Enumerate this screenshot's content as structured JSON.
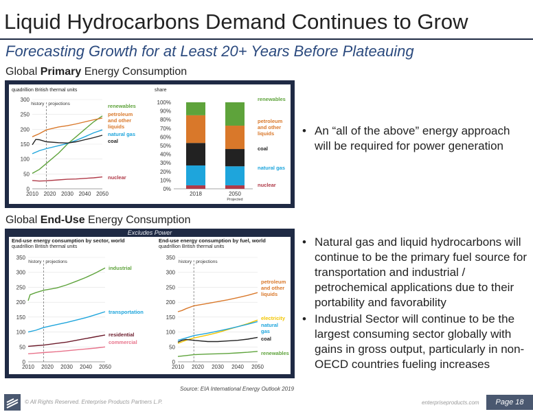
{
  "title": "Liquid Hydrocarbons Demand Continues to Grow",
  "subtitle": "Forecasting Growth for at Least 20+ Years Before Plateauing",
  "section1": {
    "pre": "Global ",
    "bold": "Primary",
    "post": " Energy Consumption"
  },
  "section2": {
    "pre": "Global ",
    "bold": "End-Use",
    "post": " Energy Consumption"
  },
  "excludes_power": "Excludes Power",
  "bullets1": [
    "An “all of the above” energy approach will be required for power generation"
  ],
  "bullets2": [
    "Natural gas and liquid hydrocarbons will continue to be the primary fuel source for transportation and industrial / petrochemical applications due to their portability and favorability",
    "Industrial Sector will continue to be the largest consuming sector globally with gains in gross output, particularly in non-OECD countries fueling increases"
  ],
  "source": "Source:  EIA International Energy Outlook 2019",
  "footer": {
    "copyright": "© All Rights Reserved. Enterprise Products Partners L.P.",
    "site": "enterpriseproducts.com",
    "page": "Page 18"
  },
  "colors": {
    "navy": "#1f2a44",
    "renewables": "#5ea33b",
    "petroleum": "#d9782a",
    "natural_gas": "#1ea5dc",
    "coal": "#222222",
    "nuclear": "#b03a48",
    "residential": "#6b1a2a",
    "commercial": "#e8728a",
    "electricity": "#f2c500"
  },
  "chart_data": [
    {
      "type": "line",
      "title": "",
      "ylabel": "quadrillion British thermal units",
      "x_ticks": [
        2010,
        2020,
        2030,
        2040,
        2050
      ],
      "y_ticks": [
        0,
        50,
        100,
        150,
        200,
        250,
        300
      ],
      "xlim": [
        2010,
        2050
      ],
      "ylim": [
        0,
        300
      ],
      "annotations": [
        "history",
        "projections"
      ],
      "divider_x": 2018,
      "series": [
        {
          "name": "renewables",
          "color": "#5ea33b",
          "x": [
            2010,
            2014,
            2018,
            2025,
            2030,
            2035,
            2040,
            2045,
            2050
          ],
          "values": [
            52,
            65,
            85,
            120,
            150,
            175,
            200,
            225,
            245
          ]
        },
        {
          "name": "petroleum and other liquids",
          "color": "#d9782a",
          "x": [
            2010,
            2014,
            2018,
            2025,
            2030,
            2035,
            2040,
            2045,
            2050
          ],
          "values": [
            175,
            185,
            198,
            208,
            212,
            218,
            225,
            232,
            238
          ]
        },
        {
          "name": "natural gas",
          "color": "#1ea5dc",
          "x": [
            2010,
            2014,
            2018,
            2025,
            2030,
            2035,
            2040,
            2045,
            2050
          ],
          "values": [
            118,
            128,
            135,
            145,
            152,
            163,
            175,
            188,
            198
          ]
        },
        {
          "name": "coal",
          "color": "#222222",
          "x": [
            2010,
            2012,
            2014,
            2018,
            2025,
            2030,
            2035,
            2040,
            2045,
            2050
          ],
          "values": [
            148,
            166,
            165,
            158,
            155,
            154,
            158,
            165,
            172,
            180
          ]
        },
        {
          "name": "nuclear",
          "color": "#b03a48",
          "x": [
            2010,
            2014,
            2018,
            2025,
            2030,
            2035,
            2040,
            2045,
            2050
          ],
          "values": [
            28,
            26,
            27,
            30,
            32,
            33,
            35,
            37,
            40
          ]
        }
      ]
    },
    {
      "type": "bar",
      "ylabel": "share",
      "stacked": true,
      "categories": [
        "2018",
        "2050"
      ],
      "category_sublabels": [
        "",
        "Projected"
      ],
      "y_ticks": [
        "0%",
        "10%",
        "20%",
        "30%",
        "40%",
        "50%",
        "60%",
        "70%",
        "80%",
        "90%",
        "100%"
      ],
      "ylim": [
        0,
        100
      ],
      "series": [
        {
          "name": "nuclear",
          "color": "#b03a48",
          "values": [
            4,
            4
          ]
        },
        {
          "name": "natural gas",
          "color": "#1ea5dc",
          "values": [
            23,
            22
          ]
        },
        {
          "name": "coal",
          "color": "#222222",
          "values": [
            26,
            20
          ]
        },
        {
          "name": "petroleum and other liquids",
          "color": "#d9782a",
          "values": [
            32,
            27
          ]
        },
        {
          "name": "renewables",
          "color": "#5ea33b",
          "values": [
            15,
            27
          ]
        }
      ]
    },
    {
      "type": "line",
      "title": "End-use energy consumption by sector, world",
      "ylabel": "quadrillion British thermal units",
      "x_ticks": [
        2010,
        2020,
        2030,
        2040,
        2050
      ],
      "y_ticks": [
        0,
        50,
        100,
        150,
        200,
        250,
        300,
        350
      ],
      "xlim": [
        2010,
        2050
      ],
      "ylim": [
        0,
        350
      ],
      "annotations": [
        "history",
        "projections"
      ],
      "divider_x": 2018,
      "series": [
        {
          "name": "industrial",
          "color": "#5ea33b",
          "x": [
            2010,
            2011,
            2014,
            2018,
            2025,
            2030,
            2035,
            2040,
            2045,
            2050
          ],
          "values": [
            205,
            225,
            232,
            240,
            248,
            258,
            270,
            283,
            298,
            315
          ]
        },
        {
          "name": "transportation",
          "color": "#1ea5dc",
          "x": [
            2010,
            2014,
            2018,
            2025,
            2030,
            2035,
            2040,
            2045,
            2050
          ],
          "values": [
            100,
            106,
            115,
            125,
            132,
            140,
            148,
            158,
            168
          ]
        },
        {
          "name": "residential",
          "color": "#6b1a2a",
          "x": [
            2010,
            2014,
            2018,
            2025,
            2030,
            2035,
            2040,
            2045,
            2050
          ],
          "values": [
            52,
            54,
            56,
            62,
            66,
            72,
            78,
            84,
            90
          ]
        },
        {
          "name": "commercial",
          "color": "#e8728a",
          "x": [
            2010,
            2014,
            2018,
            2025,
            2030,
            2035,
            2040,
            2045,
            2050
          ],
          "values": [
            27,
            29,
            31,
            34,
            37,
            40,
            43,
            46,
            50
          ]
        }
      ]
    },
    {
      "type": "line",
      "title": "End-use energy consumption by fuel, world",
      "ylabel": "quadrillion British thermal units",
      "x_ticks": [
        2010,
        2020,
        2030,
        2040,
        2050
      ],
      "y_ticks": [
        0,
        50,
        100,
        150,
        200,
        250,
        300,
        350
      ],
      "xlim": [
        2010,
        2050
      ],
      "ylim": [
        0,
        350
      ],
      "annotations": [
        "history",
        "projections"
      ],
      "divider_x": 2018,
      "series": [
        {
          "name": "petroleum and other liquids",
          "color": "#d9782a",
          "x": [
            2010,
            2012,
            2014,
            2018,
            2025,
            2030,
            2035,
            2040,
            2045,
            2050
          ],
          "values": [
            168,
            172,
            178,
            188,
            196,
            202,
            208,
            215,
            223,
            232
          ]
        },
        {
          "name": "electricity",
          "color": "#f2c500",
          "x": [
            2010,
            2014,
            2018,
            2025,
            2030,
            2035,
            2040,
            2045,
            2050
          ],
          "values": [
            62,
            72,
            80,
            90,
            98,
            108,
            118,
            128,
            140
          ]
        },
        {
          "name": "natural gas",
          "color": "#1ea5dc",
          "x": [
            2010,
            2014,
            2018,
            2025,
            2030,
            2035,
            2040,
            2045,
            2050
          ],
          "values": [
            72,
            80,
            88,
            96,
            103,
            110,
            118,
            126,
            135
          ]
        },
        {
          "name": "coal",
          "color": "#222222",
          "x": [
            2010,
            2012,
            2014,
            2018,
            2025,
            2030,
            2035,
            2040,
            2045,
            2050
          ],
          "values": [
            66,
            72,
            75,
            72,
            68,
            68,
            70,
            72,
            76,
            82
          ]
        },
        {
          "name": "renewables",
          "color": "#5ea33b",
          "x": [
            2010,
            2014,
            2018,
            2025,
            2030,
            2035,
            2040,
            2045,
            2050
          ],
          "values": [
            18,
            21,
            24,
            26,
            27,
            28,
            30,
            32,
            35
          ]
        }
      ]
    }
  ]
}
